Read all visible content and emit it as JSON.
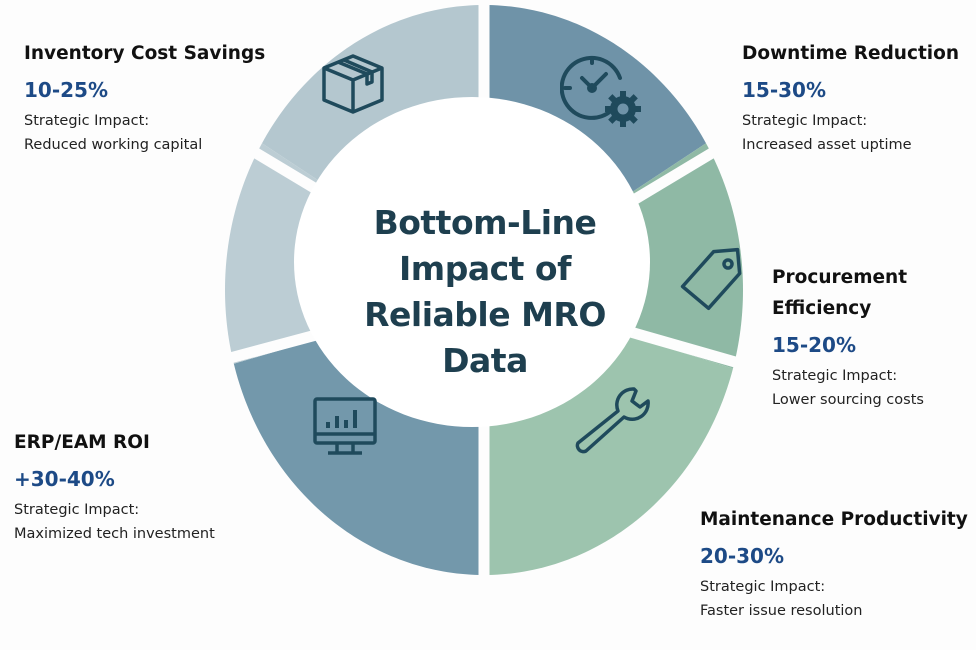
{
  "title_lines": [
    "Bottom-Line",
    "Impact of",
    "Reliable MRO",
    "Data"
  ],
  "segments": [
    {
      "id": "inventory",
      "title_lines": [
        "Inventory Cost Savings"
      ],
      "value": "10-25%",
      "impact_label": "Strategic Impact:",
      "impact": "Reduced working capital",
      "icon": "box-icon",
      "color": "#b4c7cf"
    },
    {
      "id": "downtime",
      "title_lines": [
        "Downtime Reduction"
      ],
      "value": "15-30%",
      "impact_label": "Strategic Impact:",
      "impact": "Increased asset uptime",
      "icon": "clock-gear-icon",
      "color": "#6f93a8"
    },
    {
      "id": "procurement",
      "title_lines": [
        "Procurement",
        "Efficiency"
      ],
      "value": "15-20%",
      "impact_label": "Strategic Impact:",
      "impact": "Lower sourcing costs",
      "icon": "price-tag-icon",
      "color": "#8fb9a5"
    },
    {
      "id": "maintenance",
      "title_lines": [
        "Maintenance Productivity"
      ],
      "value": "20-30%",
      "impact_label": "Strategic Impact:",
      "impact": "Faster issue resolution",
      "icon": "wrench-icon",
      "color": "#9dc4ae"
    },
    {
      "id": "erp",
      "title_lines": [
        "ERP/EAM ROI"
      ],
      "value": "+30-40%",
      "impact_label": "Strategic Impact:",
      "impact": "Maximized tech investment",
      "icon": "monitor-chart-icon",
      "color": "#7398ab"
    },
    {
      "id": "unlabeled",
      "color": "#bccdd4"
    }
  ],
  "colors": {
    "icon": "#1f4a5c",
    "title": "#1e3f4f",
    "value": "#1d4a86"
  }
}
